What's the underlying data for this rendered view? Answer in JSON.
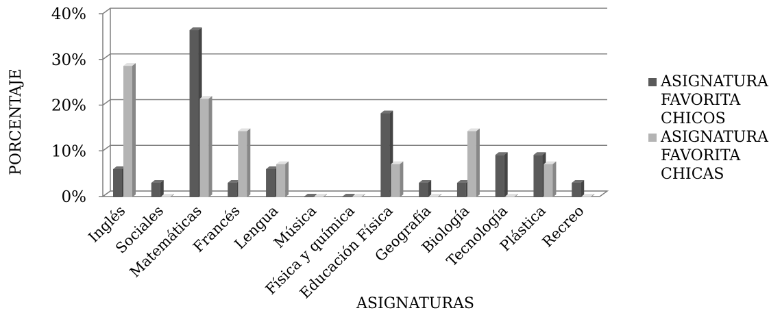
{
  "chart_data": {
    "type": "bar",
    "categories": [
      "Inglés",
      "Sociales",
      "Matemáticas",
      "Francés",
      "Lengua",
      "Música",
      "Física y química",
      "Educación Física",
      "Geografía",
      "Biología",
      "Tecnología",
      "Plástica",
      "Recreo"
    ],
    "series": [
      {
        "name": "ASIGNATURA FAVORITA CHICOS",
        "legend_lines": [
          "ASIGNATURA",
          "FAVORITA",
          "CHICOS"
        ],
        "color": "#5a5a5a",
        "values": [
          6,
          3,
          36.4,
          3,
          6,
          0,
          0,
          18.2,
          3,
          3,
          9.1,
          9.1,
          3
        ]
      },
      {
        "name": "ASIGNATURA FAVORITA CHICAS",
        "legend_lines": [
          "ASIGNATURA",
          "FAVORITA",
          "CHICAS"
        ],
        "color": "#b4b4b4",
        "values": [
          28.6,
          0,
          21.4,
          14.3,
          7.1,
          0,
          0,
          7.1,
          0,
          14.3,
          0,
          7.1,
          0
        ]
      }
    ],
    "yticks": [
      "0%",
      "10%",
      "20%",
      "30%",
      "40%"
    ],
    "ylim": [
      0,
      40
    ],
    "xlabel": "ASIGNATURAS",
    "ylabel": "PORCENTAJE",
    "grid": true,
    "style": "3d-column",
    "legend_position": "right"
  }
}
